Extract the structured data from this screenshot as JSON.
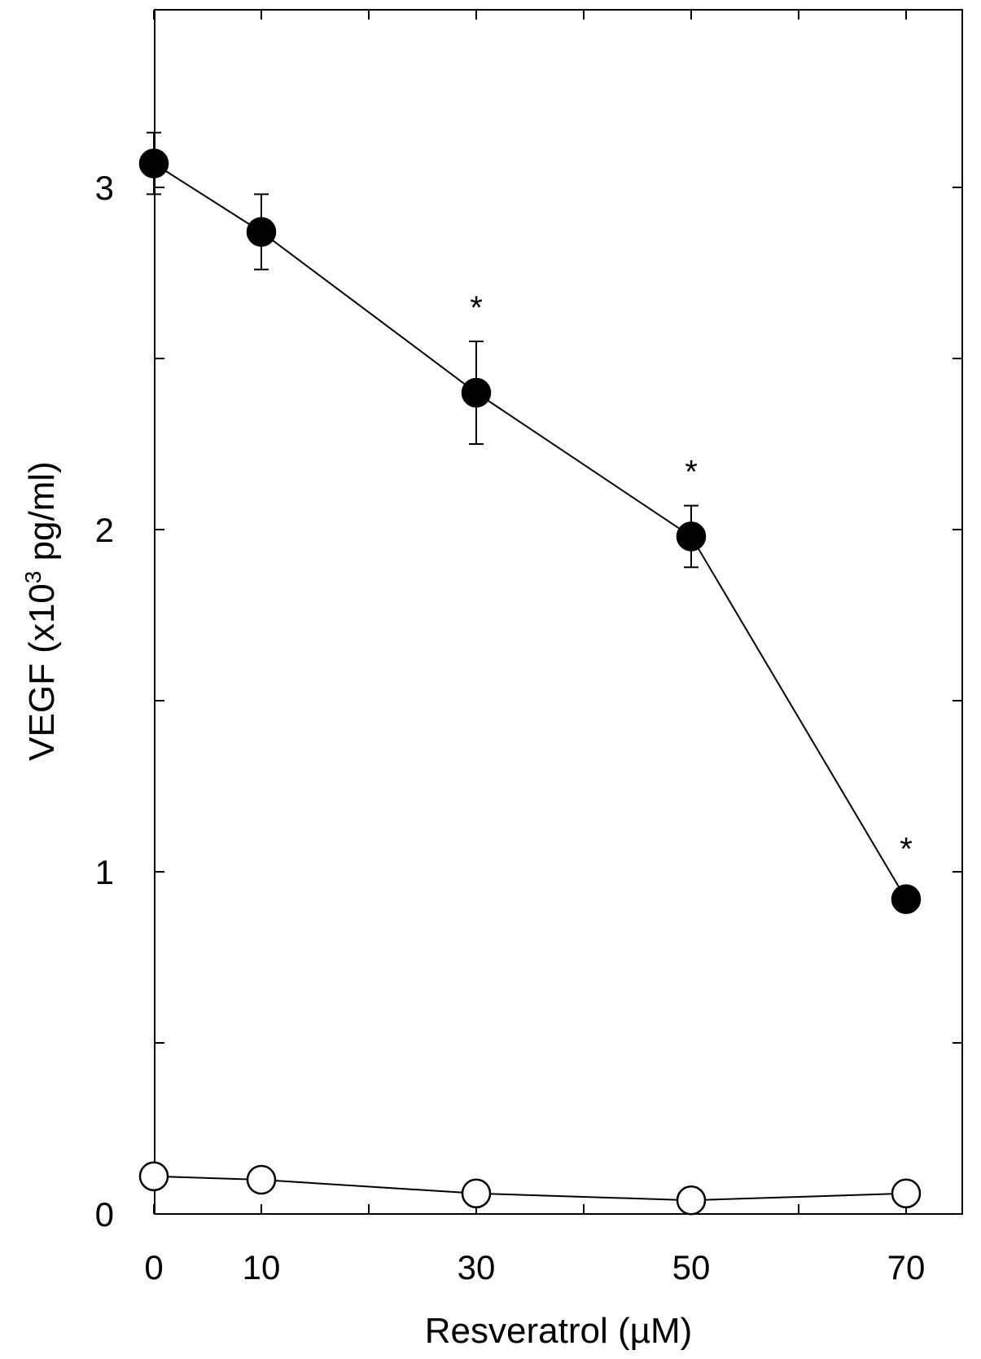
{
  "chart_data": {
    "type": "scatter",
    "title": "",
    "xlabel": "Resveratrol (µM)",
    "ylabel_parts": [
      "VEGF (x10",
      "3",
      " pg/ml)"
    ],
    "xlim": [
      0,
      75
    ],
    "ylim": [
      0,
      3.5
    ],
    "x_tick_labels": [
      "0",
      "10",
      "30",
      "50",
      "70"
    ],
    "x_minor_ticks": [
      20,
      40,
      60
    ],
    "y_tick_labels": [
      "0",
      "1",
      "2",
      "3"
    ],
    "y_minor_ticks": [
      0.5,
      1.5,
      2.5
    ],
    "grid": false,
    "series": [
      {
        "marker": "filled-circle",
        "x": [
          0,
          10,
          30,
          50,
          70
        ],
        "y": [
          3.07,
          2.87,
          2.4,
          1.98,
          0.92
        ],
        "error": [
          0.09,
          0.11,
          0.15,
          0.09,
          0
        ],
        "significance": [
          "",
          "",
          "*",
          "*",
          "*"
        ]
      },
      {
        "marker": "open-circle",
        "x": [
          0,
          10,
          30,
          50,
          70
        ],
        "y": [
          0.11,
          0.1,
          0.06,
          0.04,
          0.06
        ],
        "error": [
          0,
          0,
          0,
          0,
          0
        ],
        "significance": [
          "",
          "",
          "",
          "",
          ""
        ]
      }
    ]
  }
}
